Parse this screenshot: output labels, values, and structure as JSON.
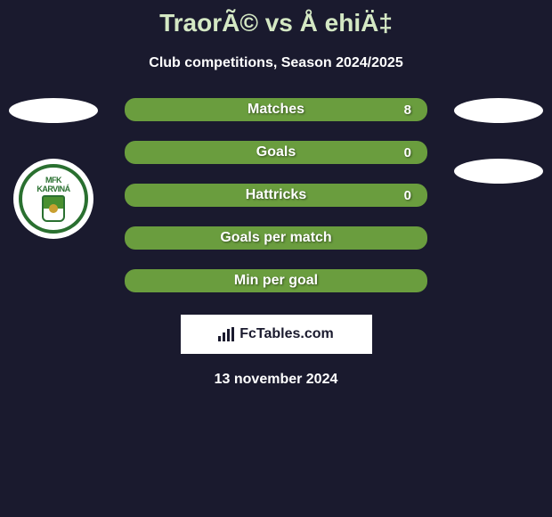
{
  "header": {
    "title": "TraorÃ© vs Å ehiÄ‡",
    "subtitle": "Club competitions, Season 2024/2025"
  },
  "club_logo": {
    "top_text": "MFK",
    "bottom_text": "KARVINÁ"
  },
  "stats": [
    {
      "label": "Matches",
      "value": "8"
    },
    {
      "label": "Goals",
      "value": "0"
    },
    {
      "label": "Hattricks",
      "value": "0"
    },
    {
      "label": "Goals per match",
      "value": ""
    },
    {
      "label": "Min per goal",
      "value": ""
    }
  ],
  "footer": {
    "brand": "FcTables.com",
    "date": "13 november 2024"
  },
  "colors": {
    "background": "#1a1a2e",
    "bar_bg": "#6a9d3e",
    "title_color": "#d4e8c4",
    "text": "#ffffff",
    "club_green": "#2a7030"
  }
}
